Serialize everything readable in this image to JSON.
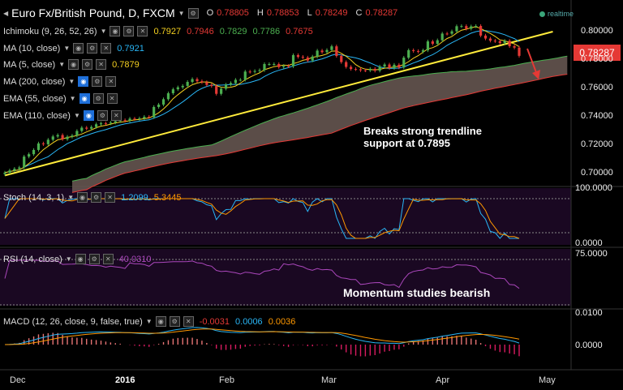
{
  "header": {
    "title": "Euro Fx/British Pound, D, FXCM",
    "ohlc": [
      {
        "k": "O",
        "v": "0.78805"
      },
      {
        "k": "H",
        "v": "0.78853"
      },
      {
        "k": "L",
        "v": "0.78249"
      },
      {
        "k": "C",
        "v": "0.78287"
      }
    ],
    "realtime": "realtime"
  },
  "indicators": [
    {
      "label": "Ichimoku (9, 26, 52, 26)",
      "values": [
        {
          "v": "0.7927",
          "c": "#f5d020"
        },
        {
          "v": "0.7946",
          "c": "#e53935"
        },
        {
          "v": "0.7829",
          "c": "#4caf50"
        },
        {
          "v": "0.7786",
          "c": "#4caf50"
        },
        {
          "v": "0.7675",
          "c": "#e53935"
        }
      ]
    },
    {
      "label": "MA (10, close)",
      "values": [
        {
          "v": "0.7921",
          "c": "#29b6f6"
        }
      ]
    },
    {
      "label": "MA (5, close)",
      "values": [
        {
          "v": "0.7879",
          "c": "#f5d020"
        }
      ]
    },
    {
      "label": "MA (200, close)",
      "values": []
    },
    {
      "label": "EMA (55, close)",
      "values": []
    },
    {
      "label": "EMA (110, close)",
      "values": []
    }
  ],
  "price_badge": "0.78287",
  "annotations": {
    "trendline": [
      "Breaks strong trendline",
      "support at 0.7895"
    ],
    "momentum": "Momentum studies bearish"
  },
  "panes": {
    "stoch": {
      "label": "Stoch (14, 3, 1)",
      "values": [
        {
          "v": "1.2099",
          "c": "#29b6f6"
        },
        {
          "v": "5.3445",
          "c": "#ff9800"
        }
      ]
    },
    "rsi": {
      "label": "RSI (14, close)",
      "values": [
        {
          "v": "40.0310",
          "c": "#ab47bc"
        }
      ]
    },
    "macd": {
      "label": "MACD (12, 26, close, 9, false, true)",
      "values": [
        {
          "v": "-0.0031",
          "c": "#e53935"
        },
        {
          "v": "0.0006",
          "c": "#29b6f6"
        },
        {
          "v": "0.0036",
          "c": "#ff9800"
        }
      ]
    }
  },
  "price_axis_ticks": [
    "0.80000",
    "0.78000",
    "0.76000",
    "0.74000",
    "0.72000",
    "0.70000"
  ],
  "stoch_axis_ticks": [
    "100.0000",
    "0.0000"
  ],
  "rsi_axis_ticks": [
    "75.0000"
  ],
  "macd_axis_ticks": [
    "0.0100",
    "0.0000"
  ],
  "x_ticks": [
    {
      "label": "Dec",
      "bold": false
    },
    {
      "label": "2016",
      "bold": true
    },
    {
      "label": "Feb",
      "bold": false
    },
    {
      "label": "Mar",
      "bold": false
    },
    {
      "label": "Apr",
      "bold": false
    },
    {
      "label": "May",
      "bold": false
    }
  ],
  "chart_data": {
    "type": "candlestick",
    "title": "Euro Fx/British Pound, D, FXCM",
    "xlabel": "",
    "ylabel": "",
    "ylim": [
      0.693,
      0.812
    ],
    "grid": false,
    "x_range": [
      "2015-11-27",
      "2016-05-06"
    ],
    "close": [
      0.7005,
      0.702,
      0.7032,
      0.7041,
      0.7118,
      0.7135,
      0.7165,
      0.7211,
      0.7205,
      0.7237,
      0.726,
      0.727,
      0.7241,
      0.7258,
      0.7266,
      0.7299,
      0.7322,
      0.7315,
      0.7327,
      0.7346,
      0.7353,
      0.7352,
      0.7358,
      0.7368,
      0.7375,
      0.7371,
      0.7386,
      0.7383,
      0.7388,
      0.7399,
      0.7396,
      0.7468,
      0.7485,
      0.7523,
      0.7565,
      0.7593,
      0.7607,
      0.7617,
      0.7645,
      0.7665,
      0.765,
      0.7643,
      0.7624,
      0.7616,
      0.7561,
      0.7597,
      0.7626,
      0.7637,
      0.766,
      0.766,
      0.7718,
      0.7716,
      0.7722,
      0.7728,
      0.7771,
      0.7771,
      0.7771,
      0.775,
      0.7758,
      0.7755,
      0.7834,
      0.7822,
      0.7817,
      0.7796,
      0.7824,
      0.7866,
      0.7855,
      0.787,
      0.7896,
      0.7828,
      0.7785,
      0.7751,
      0.7736,
      0.7734,
      0.7727,
      0.7726,
      0.7737,
      0.7724,
      0.7754,
      0.7768,
      0.7743,
      0.7766,
      0.7747,
      0.7816,
      0.7869,
      0.7863,
      0.7858,
      0.7868,
      0.7931,
      0.7914,
      0.7939,
      0.7986,
      0.7985,
      0.8002,
      0.8038,
      0.8039,
      0.802,
      0.8037,
      0.804,
      0.7972,
      0.7951,
      0.7936,
      0.7932,
      0.7919,
      0.7935,
      0.7897,
      0.7887,
      0.7829
    ],
    "trendline": {
      "from": [
        "2015-11-27",
        0.6985
      ],
      "to": [
        "2016-05-04",
        0.8
      ]
    },
    "breakout_level": 0.7895,
    "last_price": 0.78287,
    "series": [
      {
        "name": "Stoch (14, 3, 1)",
        "last": [
          1.2099,
          5.3445
        ],
        "range": [
          0,
          100
        ]
      },
      {
        "name": "RSI (14, close)",
        "last": 40.031,
        "levels": [
          70,
          30
        ]
      },
      {
        "name": "MACD (12, 26, close, 9, false, true)",
        "last": {
          "histogram": -0.0031,
          "macd": 0.0006,
          "signal": 0.0036
        }
      }
    ]
  }
}
